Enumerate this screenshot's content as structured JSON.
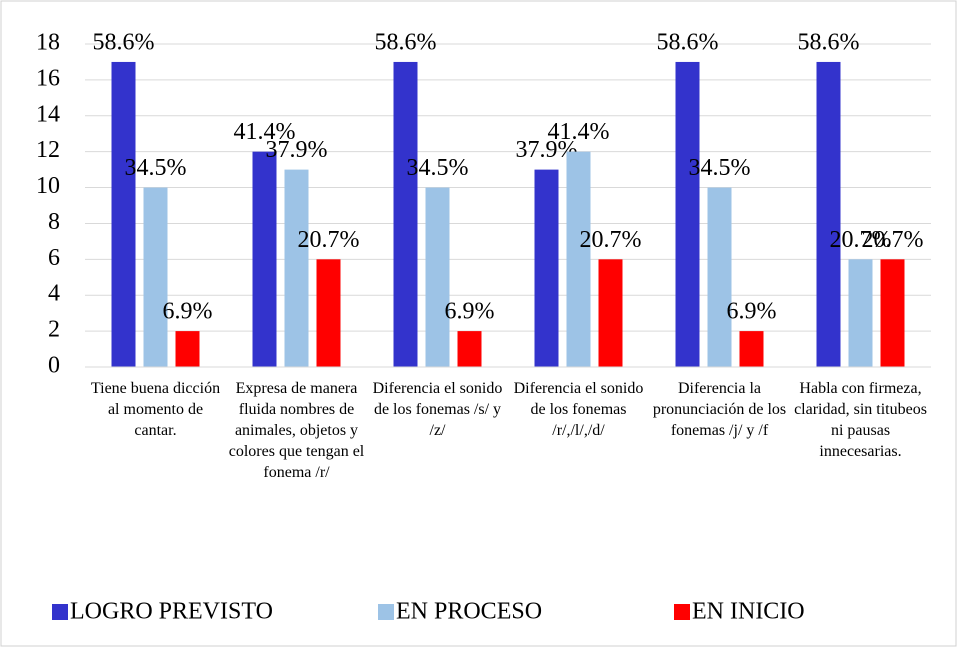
{
  "chart_data": {
    "type": "bar",
    "categories": [
      "Tiene buena dicción al momento de cantar.",
      "Expresa de manera fluida nombres de animales, objetos y colores que tengan el fonema /r/",
      "Diferencia el sonido de los fonemas /s/ y /z/",
      "Diferencia el sonido de los fonemas /r/,/l/,/d/",
      "Diferencia la pronunciación de los fonemas /j/ y /f",
      "Habla con firmeza, claridad, sin titubeos ni pausas innecesarias."
    ],
    "series": [
      {
        "name": "LOGRO PREVISTO",
        "color": "#3333cc",
        "values": [
          17,
          12,
          17,
          11,
          17,
          17
        ],
        "value_labels": [
          "58.6%",
          "41.4%",
          "58.6%",
          "37.9%",
          "58.6%",
          "58.6%"
        ]
      },
      {
        "name": "EN PROCESO",
        "color": "#9dc3e6",
        "values": [
          10,
          11,
          10,
          12,
          10,
          6
        ],
        "value_labels": [
          "34.5%",
          "37.9%",
          "34.5%",
          "41.4%",
          "34.5%",
          "20.7%"
        ]
      },
      {
        "name": "EN INICIO",
        "color": "#ff0000",
        "values": [
          2,
          6,
          2,
          6,
          2,
          6
        ],
        "value_labels": [
          "6.9%",
          "20.7%",
          "6.9%",
          "20.7%",
          "6.9%",
          "20.7%"
        ]
      }
    ],
    "ylim": [
      0,
      18
    ],
    "yticks": [
      0,
      2,
      4,
      6,
      8,
      10,
      12,
      14,
      16,
      18
    ],
    "grid": true,
    "legend": "bottom"
  }
}
